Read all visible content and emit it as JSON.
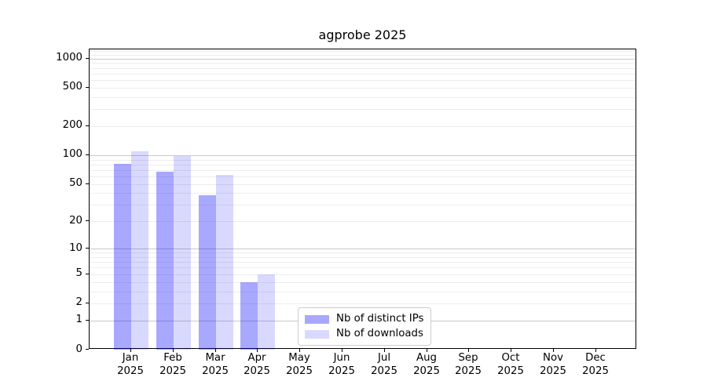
{
  "chart_data": {
    "type": "bar",
    "title": "agprobe 2025",
    "xlabel": "",
    "ylabel": "",
    "yscale": "log1p",
    "ylim": [
      0,
      1244
    ],
    "y_ticks": [
      0,
      1,
      2,
      5,
      10,
      20,
      50,
      100,
      200,
      500,
      1000
    ],
    "grid": "horizontal",
    "legend_position": "bottom-center-inside",
    "categories": [
      "Jan",
      "Feb",
      "Mar",
      "Apr",
      "May",
      "Jun",
      "Jul",
      "Aug",
      "Sep",
      "Oct",
      "Nov",
      "Dec"
    ],
    "category_year": "2025",
    "series": [
      {
        "name": "Nb of distinct IPs",
        "color": "rgba(0,0,255,0.34)",
        "values": [
          81,
          67,
          38,
          4,
          0,
          0,
          0,
          0,
          0,
          0,
          0,
          0
        ]
      },
      {
        "name": "Nb of downloads",
        "color": "rgba(0,0,255,0.15)",
        "values": [
          110,
          99,
          62,
          5,
          0,
          0,
          0,
          0,
          0,
          0,
          0,
          0
        ]
      }
    ]
  },
  "colors": {
    "major_grid": "#c9c9c9",
    "minor_grid": "#ededed",
    "axis": "#000000",
    "background": "#ffffff"
  }
}
